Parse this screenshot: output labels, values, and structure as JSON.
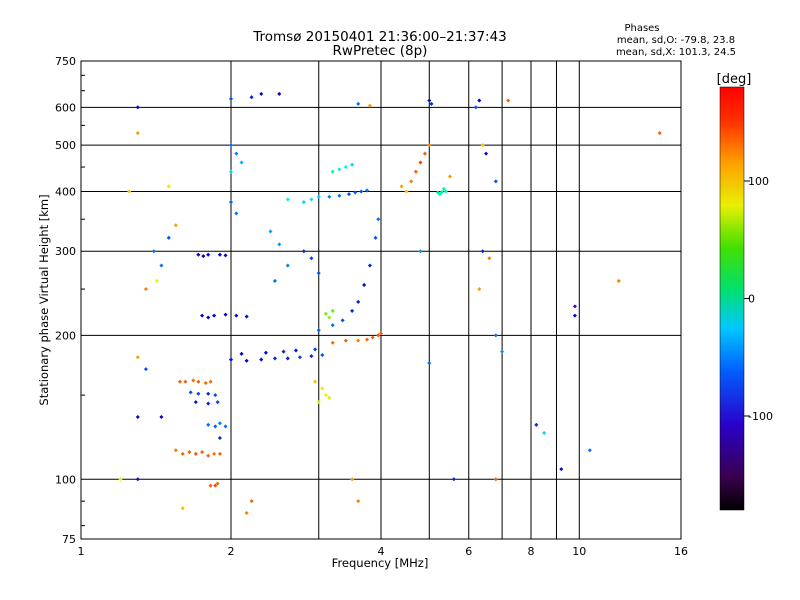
{
  "chart_data": {
    "type": "scatter",
    "title": "Tromsø 20150401 21:36:00–21:37:43",
    "subtitle": "RwPretec (8p)",
    "xlabel": "Frequency [MHz]",
    "ylabel": "Stationary phase Virtual Height [km]",
    "x_scale": "log",
    "y_scale": "log",
    "xlim": [
      1,
      16
    ],
    "ylim": [
      75,
      750
    ],
    "x_ticks": [
      1,
      2,
      4,
      6,
      8,
      10,
      16
    ],
    "x_tick_labels": [
      "1",
      "2",
      "4",
      "6",
      "8",
      "10",
      "16"
    ],
    "x_minor_ticks": [
      3,
      5,
      7,
      9
    ],
    "y_ticks": [
      75,
      100,
      200,
      300,
      400,
      500,
      600,
      750
    ],
    "y_tick_labels": [
      "75",
      "100",
      "200",
      "300",
      "400",
      "500",
      "600",
      "750"
    ],
    "grid": true,
    "phase_stats": {
      "heading": "Phases",
      "line_o": "mean, sd,O: -79.8, 23.8",
      "line_x": "mean, sd,X: 101.3, 24.5"
    },
    "colorbar": {
      "label": "[deg]",
      "range": [
        -180,
        180
      ],
      "ticks": [
        100,
        0,
        -100
      ],
      "tick_labels": [
        "100",
        "0",
        "-100"
      ]
    },
    "series": [
      {
        "points": [
          [
            1.6,
            113,
            150
          ],
          [
            1.65,
            114,
            150
          ],
          [
            1.7,
            113,
            155
          ],
          [
            1.75,
            114,
            148
          ],
          [
            1.8,
            112,
            150
          ],
          [
            1.85,
            113,
            145
          ],
          [
            1.9,
            113,
            150
          ],
          [
            1.55,
            115,
            140
          ],
          [
            1.58,
            160,
            148
          ],
          [
            1.62,
            160,
            150
          ],
          [
            1.68,
            161,
            145
          ],
          [
            1.72,
            160,
            150
          ],
          [
            1.78,
            159,
            148
          ],
          [
            1.82,
            160,
            145
          ],
          [
            1.66,
            152,
            -100
          ],
          [
            1.72,
            151,
            -105
          ],
          [
            1.8,
            151,
            -110
          ],
          [
            1.86,
            150,
            -100
          ],
          [
            1.7,
            145,
            -115
          ],
          [
            1.8,
            144,
            -110
          ],
          [
            1.88,
            145,
            -105
          ],
          [
            1.8,
            130,
            -90
          ],
          [
            1.86,
            129,
            -95
          ],
          [
            1.9,
            131,
            -85
          ],
          [
            1.95,
            129,
            -90
          ],
          [
            1.9,
            122,
            -110
          ],
          [
            1.82,
            97,
            150
          ],
          [
            1.86,
            97,
            155
          ],
          [
            1.88,
            98,
            145
          ],
          [
            1.72,
            295,
            -130
          ],
          [
            1.8,
            295,
            -130
          ],
          [
            1.9,
            295,
            -125
          ],
          [
            1.95,
            294,
            -128
          ],
          [
            1.76,
            293,
            -130
          ],
          [
            1.75,
            220,
            -125
          ],
          [
            1.85,
            220,
            -130
          ],
          [
            1.95,
            221,
            -128
          ],
          [
            2.05,
            220,
            -125
          ],
          [
            2.15,
            219,
            -120
          ],
          [
            1.8,
            218,
            -130
          ],
          [
            2.0,
            178,
            -120
          ],
          [
            2.15,
            177,
            -125
          ],
          [
            2.3,
            178,
            -120
          ],
          [
            2.45,
            179,
            -110
          ],
          [
            2.6,
            179,
            -115
          ],
          [
            2.75,
            180,
            -105
          ],
          [
            2.9,
            181,
            -110
          ],
          [
            3.05,
            182,
            -100
          ],
          [
            2.1,
            183,
            -125
          ],
          [
            2.35,
            184,
            -120
          ],
          [
            2.55,
            185,
            -110
          ],
          [
            2.7,
            186,
            -115
          ],
          [
            2.95,
            187,
            -105
          ],
          [
            3.0,
            205,
            -95
          ],
          [
            3.2,
            210,
            -90
          ],
          [
            3.35,
            215,
            -100
          ],
          [
            3.5,
            225,
            -110
          ],
          [
            3.6,
            235,
            -115
          ],
          [
            3.7,
            255,
            -120
          ],
          [
            3.8,
            280,
            -115
          ],
          [
            3.9,
            320,
            -100
          ],
          [
            3.95,
            350,
            -90
          ],
          [
            3.4,
            195,
            150
          ],
          [
            3.6,
            195,
            140
          ],
          [
            3.75,
            196,
            145
          ],
          [
            3.85,
            198,
            150
          ],
          [
            3.95,
            200,
            155
          ],
          [
            4.0,
            202,
            150
          ],
          [
            3.2,
            193,
            145
          ],
          [
            3.3,
            392,
            -90
          ],
          [
            3.45,
            395,
            -100
          ],
          [
            3.55,
            398,
            -95
          ],
          [
            3.65,
            400,
            -100
          ],
          [
            3.75,
            402,
            -90
          ],
          [
            3.15,
            390,
            -85
          ],
          [
            3.2,
            440,
            -30
          ],
          [
            3.3,
            445,
            -40
          ],
          [
            3.4,
            450,
            -50
          ],
          [
            3.5,
            455,
            -60
          ],
          [
            2.95,
            160,
            120
          ],
          [
            3.05,
            155,
            110
          ],
          [
            3.1,
            150,
            100
          ],
          [
            3.0,
            145,
            90
          ],
          [
            3.15,
            148,
            95
          ],
          [
            3.1,
            222,
            60
          ],
          [
            3.15,
            218,
            70
          ],
          [
            3.2,
            225,
            50
          ],
          [
            2.8,
            380,
            -60
          ],
          [
            2.9,
            385,
            -55
          ],
          [
            3.0,
            390,
            -65
          ],
          [
            2.6,
            385,
            -50
          ],
          [
            4.5,
            400,
            120
          ],
          [
            4.6,
            420,
            140
          ],
          [
            4.7,
            440,
            150
          ],
          [
            4.8,
            460,
            160
          ],
          [
            4.9,
            480,
            150
          ],
          [
            5.0,
            500,
            140
          ],
          [
            4.4,
            410,
            130
          ],
          [
            5.2,
            398,
            -20
          ],
          [
            5.3,
            399,
            -30
          ],
          [
            5.4,
            400,
            -25
          ],
          [
            5.35,
            405,
            -20
          ],
          [
            5.25,
            395,
            -28
          ],
          [
            5.0,
            620,
            -120
          ],
          [
            5.05,
            610,
            -110
          ],
          [
            2.5,
            640,
            -130
          ],
          [
            2.3,
            640,
            -120
          ],
          [
            2.2,
            630,
            -110
          ],
          [
            2.0,
            625,
            -100
          ],
          [
            3.6,
            610,
            -90
          ],
          [
            3.8,
            605,
            130
          ],
          [
            2.0,
            500,
            -90
          ],
          [
            2.05,
            480,
            -85
          ],
          [
            2.1,
            460,
            -70
          ],
          [
            2.0,
            440,
            -60
          ],
          [
            2.0,
            380,
            -95
          ],
          [
            2.05,
            360,
            -88
          ],
          [
            2.4,
            330,
            -75
          ],
          [
            2.5,
            310,
            -80
          ],
          [
            2.6,
            280,
            -85
          ],
          [
            2.45,
            260,
            -90
          ],
          [
            2.8,
            300,
            -110
          ],
          [
            2.9,
            290,
            -105
          ],
          [
            3.0,
            270,
            -100
          ],
          [
            1.3,
            600,
            -120
          ],
          [
            1.3,
            530,
            130
          ],
          [
            1.25,
            400,
            120
          ],
          [
            1.4,
            300,
            -90
          ],
          [
            1.35,
            250,
            140
          ],
          [
            1.5,
            410,
            110
          ],
          [
            1.55,
            340,
            130
          ],
          [
            1.5,
            320,
            -100
          ],
          [
            1.45,
            280,
            -90
          ],
          [
            1.42,
            260,
            100
          ],
          [
            1.3,
            180,
            130
          ],
          [
            1.35,
            170,
            -100
          ],
          [
            1.3,
            135,
            -120
          ],
          [
            1.45,
            135,
            -130
          ],
          [
            1.3,
            100,
            -140
          ],
          [
            1.2,
            100,
            100
          ],
          [
            1.6,
            87,
            120
          ],
          [
            2.2,
            90,
            150
          ],
          [
            2.15,
            85,
            140
          ],
          [
            3.5,
            100,
            130
          ],
          [
            3.6,
            90,
            140
          ],
          [
            6.2,
            600,
            -100
          ],
          [
            6.4,
            500,
            120
          ],
          [
            6.5,
            480,
            -120
          ],
          [
            6.8,
            420,
            -100
          ],
          [
            6.4,
            300,
            -110
          ],
          [
            6.6,
            290,
            140
          ],
          [
            6.8,
            200,
            -90
          ],
          [
            7.0,
            185,
            -80
          ],
          [
            6.3,
            250,
            130
          ],
          [
            7.2,
            620,
            150
          ],
          [
            6.3,
            620,
            -130
          ],
          [
            8.2,
            130,
            -110
          ],
          [
            8.5,
            125,
            -60
          ],
          [
            9.8,
            230,
            -150
          ],
          [
            9.8,
            220,
            -130
          ],
          [
            10.5,
            115,
            -90
          ],
          [
            12.0,
            260,
            140
          ],
          [
            14.5,
            530,
            150
          ],
          [
            9.2,
            105,
            -120
          ],
          [
            6.8,
            100,
            150
          ],
          [
            5.6,
            100,
            -110
          ],
          [
            5.0,
            175,
            -90
          ],
          [
            4.8,
            300,
            -80
          ],
          [
            5.5,
            430,
            130
          ]
        ]
      }
    ]
  }
}
